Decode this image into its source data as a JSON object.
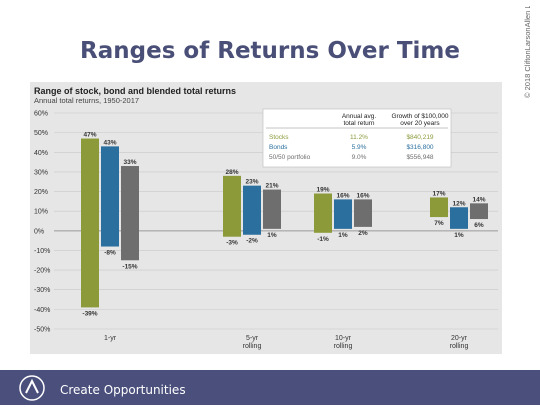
{
  "slide": {
    "title": "Ranges of Returns Over Time",
    "copyright": "© 2018 CliftonLarsonAllen LLP",
    "footer_text": "Create Opportunities",
    "logo_text": "CLA"
  },
  "colors": {
    "stocks": "#8c9a3a",
    "bonds": "#2a6f9e",
    "blended": "#6e6e6e",
    "footer": "#4a4f7c",
    "title": "#4a4f78"
  },
  "chart_data": {
    "type": "bar",
    "title": "Range of stock, bond and blended total returns",
    "subtitle": "Annual total returns, 1950-2017",
    "categories": [
      "1-yr",
      "5-yr rolling",
      "10-yr rolling",
      "20-yr rolling"
    ],
    "category_labels": [
      [
        "1-yr"
      ],
      [
        "5-yr",
        "rolling"
      ],
      [
        "10-yr",
        "rolling"
      ],
      [
        "20-yr",
        "rolling"
      ]
    ],
    "ylim": [
      -50,
      60
    ],
    "yticks": [
      "60%",
      "50%",
      "40%",
      "30%",
      "20%",
      "10%",
      "0%",
      "-10%",
      "-20%",
      "-30%",
      "-40%",
      "-50%"
    ],
    "grid": true,
    "series": [
      {
        "name": "Stocks",
        "high": [
          47,
          28,
          19,
          17
        ],
        "low": [
          -39,
          -3,
          -1,
          7
        ],
        "high_labels": [
          "47%",
          "28%",
          "19%",
          "17%"
        ],
        "low_labels": [
          "-39%",
          "-3%",
          "-1%",
          "7%"
        ]
      },
      {
        "name": "Bonds",
        "high": [
          43,
          23,
          16,
          12
        ],
        "low": [
          -8,
          -2,
          1,
          1
        ],
        "high_labels": [
          "43%",
          "23%",
          "16%",
          "12%"
        ],
        "low_labels": [
          "-8%",
          "-2%",
          "1%",
          "1%"
        ]
      },
      {
        "name": "50/50 portfolio",
        "high": [
          33,
          21,
          16,
          14
        ],
        "low": [
          -15,
          1,
          2,
          6
        ],
        "high_labels": [
          "33%",
          "21%",
          "16%",
          "14%"
        ],
        "low_labels": [
          "-15%",
          "1%",
          "2%",
          "6%"
        ]
      }
    ],
    "table": {
      "headers": [
        "",
        "Annual avg. total return",
        "Growth of $100,000 over 20 years"
      ],
      "rows": [
        [
          "Stocks",
          "11.2%",
          "$840,219"
        ],
        [
          "Bonds",
          "5.9%",
          "$316,800"
        ],
        [
          "50/50 portfolio",
          "9.0%",
          "$556,948"
        ]
      ]
    }
  }
}
